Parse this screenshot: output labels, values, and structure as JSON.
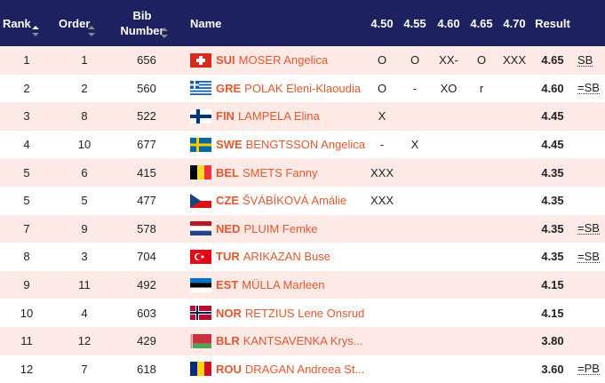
{
  "header": {
    "rank": "Rank",
    "order": "Order",
    "bib": "Bib Number",
    "name": "Name",
    "heights": [
      "4.50",
      "4.55",
      "4.60",
      "4.65",
      "4.70"
    ],
    "result": "Result"
  },
  "table": {
    "rows": [
      {
        "rank": "1",
        "order": "1",
        "bib": "656",
        "country": "SUI",
        "name": "MOSER Angelica",
        "attempts": [
          "O",
          "O",
          "XX-",
          "O",
          "XXX"
        ],
        "result": "4.65",
        "note": "SB"
      },
      {
        "rank": "2",
        "order": "2",
        "bib": "560",
        "country": "GRE",
        "name": "POLAK Eleni-Klaoudia",
        "attempts": [
          "O",
          "-",
          "XO",
          "r",
          null
        ],
        "result": "4.60",
        "note": "=SB"
      },
      {
        "rank": "3",
        "order": "8",
        "bib": "522",
        "country": "FIN",
        "name": "LAMPELA Elina",
        "attempts": [
          "X",
          null,
          null,
          null,
          null
        ],
        "result": "4.45",
        "note": null
      },
      {
        "rank": "4",
        "order": "10",
        "bib": "677",
        "country": "SWE",
        "name": "BENGTSSON Angelica",
        "attempts": [
          "-",
          "X",
          null,
          null,
          null
        ],
        "result": "4.45",
        "note": null
      },
      {
        "rank": "5",
        "order": "6",
        "bib": "415",
        "country": "BEL",
        "name": "SMETS Fanny",
        "attempts": [
          "XXX",
          null,
          null,
          null,
          null
        ],
        "result": "4.35",
        "note": null
      },
      {
        "rank": "5",
        "order": "5",
        "bib": "477",
        "country": "CZE",
        "name": "ŠVÁBÍKOVÁ Amálie",
        "attempts": [
          "XXX",
          null,
          null,
          null,
          null
        ],
        "result": "4.35",
        "note": null
      },
      {
        "rank": "7",
        "order": "9",
        "bib": "578",
        "country": "NED",
        "name": "PLUIM Femke",
        "attempts": [
          null,
          null,
          null,
          null,
          null
        ],
        "result": "4.35",
        "note": "=SB"
      },
      {
        "rank": "8",
        "order": "3",
        "bib": "704",
        "country": "TUR",
        "name": "ARIKAZAN Buse",
        "attempts": [
          null,
          null,
          null,
          null,
          null
        ],
        "result": "4.35",
        "note": "=SB"
      },
      {
        "rank": "9",
        "order": "11",
        "bib": "492",
        "country": "EST",
        "name": "MÜLLA Marleen",
        "attempts": [
          null,
          null,
          null,
          null,
          null
        ],
        "result": "4.15",
        "note": null
      },
      {
        "rank": "10",
        "order": "4",
        "bib": "603",
        "country": "NOR",
        "name": "RETZIUS Lene Onsrud",
        "attempts": [
          null,
          null,
          null,
          null,
          null
        ],
        "result": "4.15",
        "note": null
      },
      {
        "rank": "11",
        "order": "12",
        "bib": "429",
        "country": "BLR",
        "name": "KANTSAVENKA Krys...",
        "attempts": [
          null,
          null,
          null,
          null,
          null
        ],
        "result": "3.80",
        "note": null
      },
      {
        "rank": "12",
        "order": "7",
        "bib": "618",
        "country": "ROU",
        "name": "DRAGAN Andreea St...",
        "attempts": [
          null,
          null,
          null,
          null,
          null
        ],
        "result": "3.60",
        "note": "=PB"
      }
    ]
  }
}
